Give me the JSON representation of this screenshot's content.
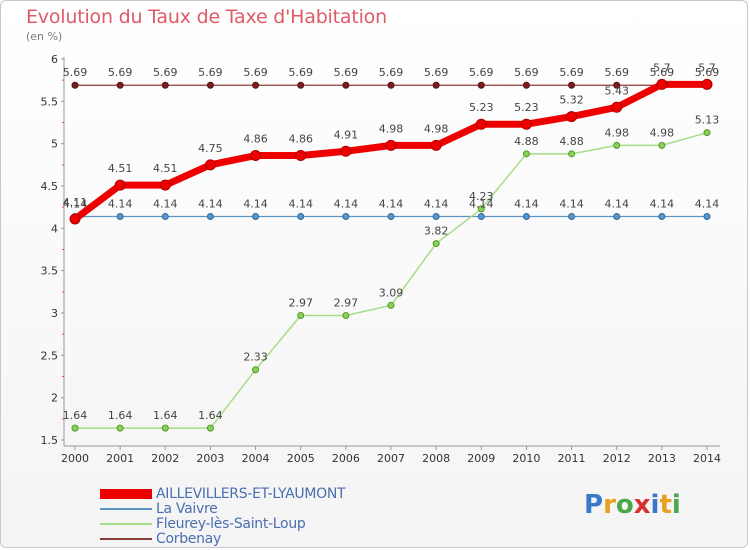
{
  "title": "Evolution du Taux de Taxe d'Habitation",
  "unit": "(en %)",
  "brand": {
    "letters": [
      "P",
      "r",
      "o",
      "x",
      "i",
      "t",
      "i"
    ],
    "colors": [
      "#3c78c8",
      "#e8a020",
      "#4aa84a",
      "#d83030",
      "#3c78c8",
      "#e8a020",
      "#4aa84a"
    ]
  },
  "chart_data": {
    "type": "line",
    "title": "Evolution du Taux de Taxe d'Habitation",
    "ylabel": "(en %)",
    "xlabel": "",
    "ylim": [
      1.5,
      6
    ],
    "yticks": [
      "1.5",
      "2",
      "2.5",
      "3",
      "3.5",
      "4",
      "4.5",
      "5",
      "5.5",
      "6"
    ],
    "categories": [
      "2000",
      "2001",
      "2002",
      "2003",
      "2004",
      "2005",
      "2006",
      "2007",
      "2008",
      "2009",
      "2010",
      "2011",
      "2012",
      "2013",
      "2014"
    ],
    "series": [
      {
        "name": "AILLEVILLERS-ET-LYAUMONT",
        "color": "#ee0000",
        "values": [
          4.11,
          4.51,
          4.51,
          4.75,
          4.86,
          4.86,
          4.91,
          4.98,
          4.98,
          5.23,
          5.23,
          5.32,
          5.43,
          5.7,
          5.7
        ],
        "labels": [
          "4.11",
          "4.51",
          "4.51",
          "4.75",
          "4.86",
          "4.86",
          "4.91",
          "4.98",
          "4.98",
          "5.23",
          "5.23",
          "5.32",
          "5.43",
          "5.7",
          "5.7"
        ]
      },
      {
        "name": "La Vaivre",
        "color": "#5a96c8",
        "values": [
          4.14,
          4.14,
          4.14,
          4.14,
          4.14,
          4.14,
          4.14,
          4.14,
          4.14,
          4.14,
          4.14,
          4.14,
          4.14,
          4.14,
          4.14
        ],
        "labels": [
          "4.14",
          "4.14",
          "4.14",
          "4.14",
          "4.14",
          "4.14",
          "4.14",
          "4.14",
          "4.14",
          "4.14",
          "4.14",
          "4.14",
          "4.14",
          "4.14",
          "4.14"
        ]
      },
      {
        "name": "Fleurey-lès-Saint-Loup",
        "color": "#a6dd88",
        "values": [
          1.64,
          1.64,
          1.64,
          1.64,
          2.33,
          2.97,
          2.97,
          3.09,
          3.82,
          4.23,
          4.88,
          4.88,
          4.98,
          4.98,
          5.13
        ],
        "labels": [
          "1.64",
          "1.64",
          "1.64",
          "1.64",
          "2.33",
          "2.97",
          "2.97",
          "3.09",
          "3.82",
          "4.23",
          "4.88",
          "4.88",
          "4.98",
          "4.98",
          "5.13"
        ]
      },
      {
        "name": "Corbenay",
        "color": "#8b3a3a",
        "values": [
          5.69,
          5.69,
          5.69,
          5.69,
          5.69,
          5.69,
          5.69,
          5.69,
          5.69,
          5.69,
          5.69,
          5.69,
          5.69,
          5.69,
          5.69
        ],
        "labels": [
          "5.69",
          "5.69",
          "5.69",
          "5.69",
          "5.69",
          "5.69",
          "5.69",
          "5.69",
          "5.69",
          "5.69",
          "5.69",
          "5.69",
          "5.69",
          "5.69",
          "5.69"
        ]
      }
    ]
  }
}
